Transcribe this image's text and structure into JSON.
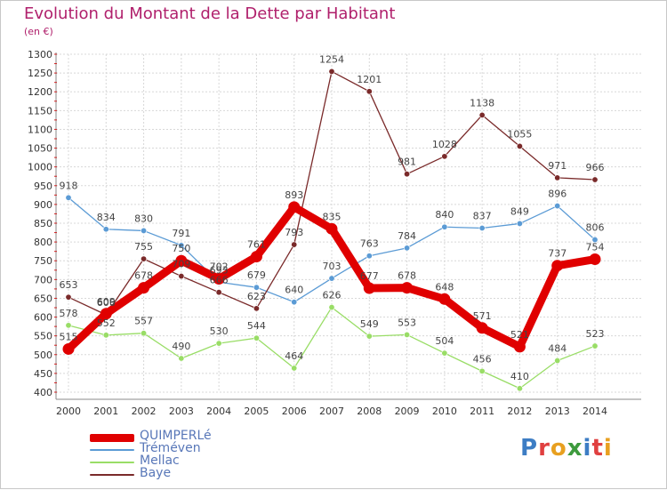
{
  "title": "Evolution du Montant de la Dette par Habitant",
  "unit": "(en €)",
  "brand": {
    "letters": [
      "P",
      "r",
      "o",
      "x",
      "i",
      "t",
      "i"
    ],
    "colors": [
      "#3d7dc4",
      "#e04040",
      "#e8a020",
      "#3d9a3d",
      "#3d7dc4",
      "#e04040",
      "#e8a020"
    ]
  },
  "chart_data": {
    "type": "line",
    "x": [
      "2000",
      "2001",
      "2002",
      "2003",
      "2004",
      "2005",
      "2006",
      "2007",
      "2008",
      "2009",
      "2010",
      "2011",
      "2012",
      "2013",
      "2014"
    ],
    "ylim": [
      400,
      1300
    ],
    "yticks": [
      400,
      450,
      500,
      550,
      600,
      650,
      700,
      750,
      800,
      850,
      900,
      950,
      1000,
      1050,
      1100,
      1150,
      1200,
      1250,
      1300
    ],
    "grid": true,
    "legend_position": "bottom-left",
    "series": [
      {
        "name": "QUIMPERLé",
        "color": "#e00000",
        "values": [
          515,
          609,
          678,
          750,
          702,
          761,
          893,
          835,
          677,
          678,
          648,
          571,
          521,
          737,
          754
        ]
      },
      {
        "name": "Tréméven",
        "color": "#5b9bd5",
        "values": [
          918,
          834,
          830,
          791,
          693,
          679,
          640,
          703,
          763,
          784,
          840,
          837,
          849,
          896,
          806
        ]
      },
      {
        "name": "Mellac",
        "color": "#99dd66",
        "values": [
          578,
          552,
          557,
          490,
          530,
          544,
          464,
          626,
          549,
          553,
          504,
          456,
          410,
          484,
          523
        ]
      },
      {
        "name": "Baye",
        "color": "#7a2a2a",
        "values": [
          653,
          606,
          755,
          709,
          666,
          623,
          793,
          1254,
          1201,
          981,
          1028,
          1138,
          1055,
          971,
          966
        ]
      }
    ]
  }
}
